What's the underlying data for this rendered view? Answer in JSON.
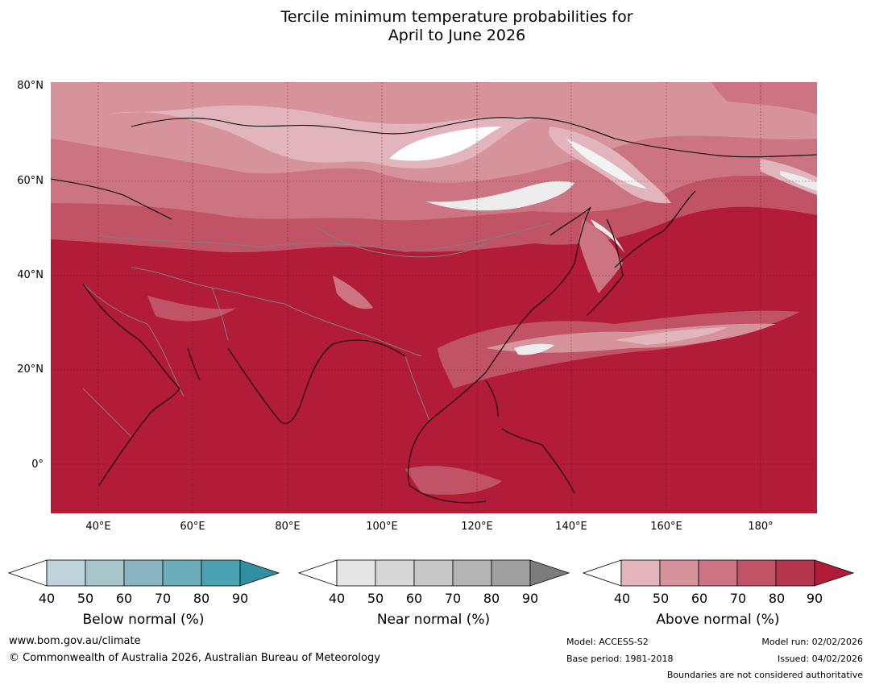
{
  "title": {
    "line1": "Tercile minimum temperature probabilities for",
    "line2": "April to June 2026"
  },
  "map": {
    "lat_labels": [
      "80°N",
      "60°N",
      "40°N",
      "20°N",
      "0°"
    ],
    "lon_labels": [
      "40°E",
      "60°E",
      "80°E",
      "100°E",
      "120°E",
      "140°E",
      "160°E",
      "180°"
    ],
    "background_color": "#b21c38"
  },
  "colorbars": [
    {
      "label": "Below normal (%)",
      "ticks": [
        "40",
        "50",
        "60",
        "70",
        "80",
        "90"
      ],
      "colors": [
        "#ffffff",
        "#bfd3da",
        "#a8c5cc",
        "#8bb5c0",
        "#6dacb9",
        "#4ba2b1",
        "#2f90a2"
      ]
    },
    {
      "label": "Near normal (%)",
      "ticks": [
        "40",
        "50",
        "60",
        "70",
        "80",
        "90"
      ],
      "colors": [
        "#ffffff",
        "#e6e6e6",
        "#d7d7d7",
        "#c8c8c8",
        "#b4b4b4",
        "#a0a0a0",
        "#7c7c7c"
      ]
    },
    {
      "label": "Above normal (%)",
      "ticks": [
        "40",
        "50",
        "60",
        "70",
        "80",
        "90"
      ],
      "colors": [
        "#ffffff",
        "#e2b5bc",
        "#d6939c",
        "#cc7481",
        "#c05466",
        "#b6374d",
        "#b21c38"
      ]
    }
  ],
  "footer": {
    "website": "www.bom.gov.au/climate",
    "copyright": "© Commonwealth of Australia 2026, Australian Bureau of Meteorology",
    "model": "Model: ACCESS-S2",
    "base_period": "Base period: 1981-2018",
    "model_run": "Model run: 02/02/2026",
    "issued": "Issued: 04/02/2026",
    "disclaimer": "Boundaries are not considered authoritative"
  }
}
